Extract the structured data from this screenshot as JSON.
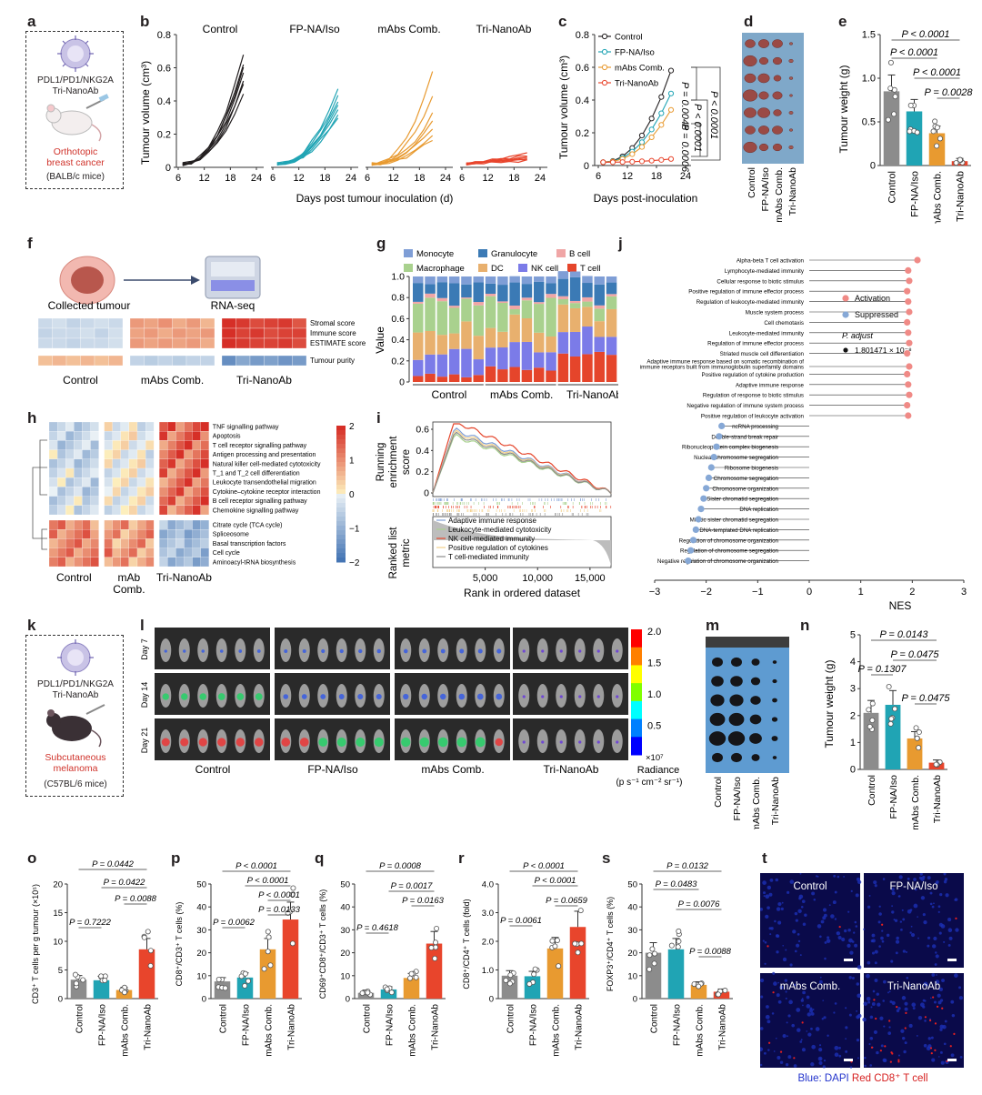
{
  "letters": [
    "a",
    "b",
    "c",
    "d",
    "e",
    "f",
    "g",
    "h",
    "i",
    "j",
    "k",
    "l",
    "m",
    "n",
    "o",
    "p",
    "q",
    "r",
    "s",
    "t"
  ],
  "colors": {
    "control": "#231f20",
    "fpna": "#20a4b4",
    "mabs": "#e89a30",
    "tri": "#e8452c",
    "grey": "#8c8c8c"
  },
  "panel_a": {
    "line1": "PDL1/PD1/NKG2A",
    "line2": "Tri-NanoAb",
    "model1": "Orthotopic",
    "model2": "breast cancer",
    "mice": "(BALB/c mice)"
  },
  "panel_k": {
    "line1": "PDL1/PD1/NKG2A",
    "line2": "Tri-NanoAb",
    "model1": "Subcutaneous",
    "model2": "melanoma",
    "mice": "(C57BL/6 mice)"
  },
  "groups": [
    "Control",
    "FP-NA/Iso",
    "mAbs Comb.",
    "Tri-NanoAb"
  ],
  "panel_b": {
    "ylabel": "Tumour volume (cm³)",
    "xlabel": "Days post tumour inoculation (d)",
    "titles": [
      "Control",
      "FP-NA/Iso",
      "mAbs Comb.",
      "Tri-NanoAb"
    ],
    "yticks": [
      "0",
      "0.2",
      "0.4",
      "0.6",
      "0.8"
    ],
    "xticks": [
      "6",
      "12",
      "18",
      "24"
    ]
  },
  "panel_c": {
    "ylabel": "Tumour volume (cm³)",
    "xlabel": "Days post-inoculation",
    "yticks": [
      "0",
      "0.2",
      "0.4",
      "0.6",
      "0.8"
    ],
    "xticks": [
      "6",
      "12",
      "18",
      "24"
    ],
    "legend": [
      "Control",
      "FP-NA/Iso",
      "mAbs Comb.",
      "Tri-NanoAb"
    ],
    "pvals": [
      "P = 0.0048",
      "P < 0.0001",
      "P = 0.0006",
      "P < 0.0001"
    ]
  },
  "panel_d": {
    "labels": [
      "Control",
      "FP-NA/Iso",
      "mAbs Comb.",
      "Tri-NanoAb"
    ]
  },
  "panel_e": {
    "ylabel": "Tumour weight (g)",
    "yticks": [
      "0",
      "0.5",
      "1.0",
      "1.5"
    ],
    "values": [
      0.85,
      0.62,
      0.37,
      0.05
    ],
    "pvals": [
      "P < 0.0001",
      "P < 0.0001",
      "P < 0.0001",
      "P = 0.0028"
    ]
  },
  "panel_f": {
    "collected": "Collected tumour",
    "rnaseq": "RNA-seq",
    "rows": [
      "Stromal score",
      "Immune score",
      "ESTIMATE score",
      "Tumour purity"
    ],
    "groups": [
      "Control",
      "mAbs Comb.",
      "Tri-NanoAb"
    ],
    "scale": [
      "2",
      "1",
      "0",
      "−1",
      "−2"
    ]
  },
  "panel_g": {
    "legend": [
      "Monocyte",
      "Granulocyte",
      "B cell",
      "Macrophage",
      "DC",
      "NK cell",
      "T cell"
    ],
    "ylabel": "Value",
    "yticks": [
      "0",
      "0.2",
      "0.4",
      "0.6",
      "0.8",
      "1.0"
    ],
    "groups": [
      "Control",
      "mAbs Comb.",
      "Tri-NanoAb"
    ]
  },
  "panel_h": {
    "pathways": [
      "TNF signalling pathway",
      "Apoptosis",
      "T cell receptor signalling pathway",
      "Antigen processing and presentation",
      "Natural killer cell-mediated cytotoxicity",
      "T_1 and T_2 cell differentiation",
      "Leukocyte transendothelial migration",
      "Cytokine–cytokine receptor interaction",
      "B cell receptor signalling pathway",
      "Chemokine signalling pathway",
      "Citrate cycle (TCA cycle)",
      "Spliceosome",
      "Basal transcription factors",
      "Cell cycle",
      "Aminoacyl-tRNA biosynthesis"
    ],
    "groups": [
      "Control",
      "mAb",
      "Comb.",
      "Tri-NanoAb"
    ],
    "scale": [
      "2",
      "1",
      "0",
      "−1",
      "−2"
    ]
  },
  "panel_i": {
    "ylabel1": "Running",
    "ylabel2": "enrichment",
    "ylabel3": "score",
    "ylabel4": "Ranked list",
    "ylabel5": "metric",
    "xlabel": "Rank in ordered dataset",
    "xticks": [
      "5,000",
      "10,000",
      "15,000"
    ],
    "yticks": [
      "0.6",
      "0.4",
      "0.2",
      "0"
    ],
    "legend": [
      "Adaptive immune response",
      "Leukocyte-mediated cytotoxicity",
      "NK cell-mediated immunity",
      "Positive regulation of cytokines",
      "T cell-mediated immunity"
    ]
  },
  "panel_j": {
    "xlabel": "NES",
    "xticks": [
      "−3",
      "−2",
      "−1",
      "0",
      "1",
      "2",
      "3"
    ],
    "legend_activation": "Activation",
    "legend_suppressed": "Suppressed",
    "padj_label": "P. adjust",
    "padj_value": "1.801471 × 10⁻⁸",
    "terms": [
      "Alpha-beta T cell activation",
      "Lymphocyte-mediated immunity",
      "Cellular response to biotic stimulus",
      "Positive regulation of immune effector process",
      "Regulation of leukocyte-mediated immunity",
      "Muscle system process",
      "Cell chemotaxis",
      "Leukocyte-mediated immunity",
      "Regulation of immune effector process",
      "Striated muscle cell differentiation",
      "Adaptive immune response based on somatic recombination of",
      "immune receptors built from immunoglobulin superfamily domains",
      "Positive regulation of cytokine production",
      "Adaptive immune response",
      "Regulation of response to biotic stimulus",
      "Negative regulation of immune system process",
      "Positive regulation of leukocyte activation",
      "ncRNA processing",
      "Double-strand break repair",
      "Ribonucleoprotein complex biogenesis",
      "Nuclear chromosome segregation",
      "Ribosome biogenesis",
      "Chromosome segregation",
      "Chromosome organization",
      "Sister chromatid segregation",
      "DNA replication",
      "Mitotic sister chromatid segregation",
      "DNA-templated DNA replication",
      "Regulation of chromosome organization",
      "Regulation of chromosome segregation",
      "Negative regulation of chromosome organization"
    ]
  },
  "panel_l": {
    "days": [
      "Day 7",
      "Day 14",
      "Day 21"
    ],
    "groups": [
      "Control",
      "FP-NA/Iso",
      "mAbs Comb.",
      "Tri-NanoAb"
    ],
    "scale": [
      "2.0",
      "1.5",
      "1.0",
      "0.5"
    ],
    "scale_unit": "×10⁷",
    "radiance": "Radiance",
    "radiance_unit": "(p s⁻¹ cm⁻² sr⁻¹)"
  },
  "panel_n": {
    "ylabel": "Tumour weight (g)",
    "yticks": [
      "0",
      "1",
      "2",
      "3",
      "4",
      "5"
    ],
    "values": [
      2.1,
      2.4,
      1.15,
      0.25
    ],
    "pvals": [
      "P = 0.0143",
      "P = 0.0475",
      "P = 0.1307",
      "P = 0.0475"
    ]
  },
  "panel_o": {
    "ylabel": "CD3⁺ T cells per g tumour (×10⁵)",
    "yticks": [
      "0",
      "5",
      "10",
      "15",
      "20"
    ],
    "values": [
      3.3,
      3.2,
      1.5,
      8.6
    ],
    "pvals": [
      "P = 0.0442",
      "P = 0.0422",
      "P = 0.0088",
      "P = 0.7222"
    ]
  },
  "panel_p": {
    "ylabel": "CD8⁺/CD3⁺ T cells (%)",
    "yticks": [
      "0",
      "10",
      "20",
      "30",
      "40",
      "50"
    ],
    "values": [
      7.5,
      9.2,
      21.5,
      34.5
    ],
    "pvals": [
      "P < 0.0001",
      "P < 0.0001",
      "P < 0.0001",
      "P = 0.0133",
      "P = 0.0062"
    ]
  },
  "panel_q": {
    "ylabel": "CD69⁺CD8⁺/CD3⁺ T cells (%)",
    "yticks": [
      "0",
      "10",
      "20",
      "30",
      "40",
      "50"
    ],
    "values": [
      2.5,
      4.0,
      9.0,
      24.0
    ],
    "pvals": [
      "P = 0.0008",
      "P = 0.0017",
      "P = 0.0163",
      "P = 0.4618"
    ]
  },
  "panel_r": {
    "ylabel": "CD8⁺/CD4⁺ T cells (fold)",
    "yticks": [
      "0",
      "1.0",
      "2.0",
      "3.0",
      "4.0"
    ],
    "values": [
      0.8,
      0.78,
      1.75,
      2.5
    ],
    "pvals": [
      "P < 0.0001",
      "P < 0.0001",
      "P = 0.0659",
      "P = 0.0061"
    ]
  },
  "panel_s": {
    "ylabel": "FOXP3⁺/CD4⁺ T cells (%)",
    "yticks": [
      "0",
      "10",
      "20",
      "30",
      "40",
      "50"
    ],
    "values": [
      20,
      21.5,
      6,
      3
    ],
    "pvals": [
      "P = 0.0132",
      "P = 0.0483",
      "P = 0.0076",
      "P = 0.0088"
    ]
  },
  "panel_t": {
    "labels": [
      "Control",
      "FP-NA/Iso",
      "mAbs Comb.",
      "Tri-NanoAb"
    ],
    "caption_blue": "Blue: DAPI",
    "caption_red": "Red CD8⁺ T cell"
  }
}
